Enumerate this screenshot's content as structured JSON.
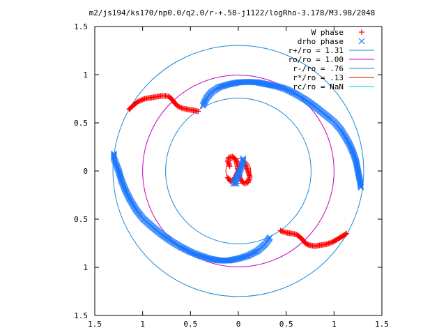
{
  "chart_data": {
    "type": "scatter",
    "title": "m2/js194/ks170/np0.0/q2.0/r-+.58-j1122/logRho-3.178/M3.98/2048",
    "xlabel": "",
    "ylabel": "",
    "xlim": [
      -1.5,
      1.5
    ],
    "ylim": [
      -1.5,
      1.5
    ],
    "x_tick_labels": [
      "1.5",
      "1",
      "0.5",
      "0",
      "0.5",
      "1",
      "1.5"
    ],
    "y_tick_labels": [
      "1.5",
      "1",
      "0.5",
      "0",
      "0.5",
      "1",
      "1.5"
    ],
    "grid": false,
    "legend_position": "top-right",
    "series": [
      {
        "name": "W phase",
        "kind": "points",
        "marker": "plus",
        "color": "#ff0000",
        "points": [
          [
            -1.14,
            0.64
          ],
          [
            -1.1,
            0.68
          ],
          [
            -1.05,
            0.72
          ],
          [
            -0.98,
            0.75
          ],
          [
            -0.92,
            0.76
          ],
          [
            -0.86,
            0.77
          ],
          [
            -0.8,
            0.78
          ],
          [
            -0.76,
            0.78
          ],
          [
            -0.72,
            0.77
          ],
          [
            -0.69,
            0.74
          ],
          [
            -0.66,
            0.7
          ],
          [
            -0.63,
            0.67
          ],
          [
            -0.58,
            0.65
          ],
          [
            -0.53,
            0.64
          ],
          [
            -0.47,
            0.63
          ],
          [
            -0.42,
            0.62
          ],
          [
            -0.09,
            0.05
          ],
          [
            -0.11,
            0.1
          ],
          [
            -0.1,
            0.14
          ],
          [
            -0.06,
            0.15
          ],
          [
            -0.02,
            0.11
          ],
          [
            -0.01,
            0.05
          ],
          [
            0.0,
            0.0
          ],
          [
            0.01,
            -0.05
          ],
          [
            0.03,
            -0.1
          ],
          [
            0.06,
            -0.13
          ],
          [
            0.1,
            -0.12
          ],
          [
            0.12,
            -0.06
          ],
          [
            0.1,
            0.0
          ],
          [
            0.08,
            0.05
          ],
          [
            0.05,
            0.1
          ],
          [
            -0.04,
            -0.08
          ],
          [
            -0.08,
            -0.11
          ],
          [
            -0.11,
            -0.07
          ],
          [
            0.44,
            -0.62
          ],
          [
            0.5,
            -0.64
          ],
          [
            0.56,
            -0.65
          ],
          [
            0.61,
            -0.66
          ],
          [
            0.66,
            -0.7
          ],
          [
            0.7,
            -0.75
          ],
          [
            0.74,
            -0.77
          ],
          [
            0.8,
            -0.78
          ],
          [
            0.86,
            -0.77
          ],
          [
            0.92,
            -0.76
          ],
          [
            0.98,
            -0.74
          ],
          [
            1.05,
            -0.7
          ],
          [
            1.1,
            -0.67
          ],
          [
            1.13,
            -0.65
          ]
        ]
      },
      {
        "name": "drho phase",
        "kind": "points",
        "marker": "cross",
        "color": "#1e78ff",
        "points": [
          [
            -0.37,
            0.68
          ],
          [
            -0.33,
            0.76
          ],
          [
            -0.28,
            0.82
          ],
          [
            -0.2,
            0.87
          ],
          [
            -0.1,
            0.9
          ],
          [
            0.0,
            0.92
          ],
          [
            0.1,
            0.925
          ],
          [
            0.2,
            0.92
          ],
          [
            0.3,
            0.9
          ],
          [
            0.4,
            0.88
          ],
          [
            0.5,
            0.85
          ],
          [
            0.6,
            0.8
          ],
          [
            0.7,
            0.74
          ],
          [
            0.8,
            0.67
          ],
          [
            0.9,
            0.59
          ],
          [
            1.0,
            0.51
          ],
          [
            1.07,
            0.43
          ],
          [
            1.12,
            0.35
          ],
          [
            1.16,
            0.28
          ],
          [
            1.2,
            0.19
          ],
          [
            1.23,
            0.1
          ],
          [
            1.25,
            0.0
          ],
          [
            1.27,
            -0.1
          ],
          [
            1.28,
            -0.17
          ],
          [
            0.05,
            0.13
          ],
          [
            0.05,
            0.09
          ],
          [
            0.03,
            0.04
          ],
          [
            0.01,
            -0.02
          ],
          [
            -0.01,
            -0.06
          ],
          [
            -0.03,
            -0.1
          ],
          [
            -0.05,
            -0.13
          ],
          [
            -0.02,
            -0.13
          ],
          [
            0.33,
            -0.69
          ],
          [
            0.28,
            -0.76
          ],
          [
            0.2,
            -0.83
          ],
          [
            0.1,
            -0.88
          ],
          [
            0.0,
            -0.91
          ],
          [
            -0.1,
            -0.93
          ],
          [
            -0.2,
            -0.93
          ],
          [
            -0.3,
            -0.91
          ],
          [
            -0.4,
            -0.88
          ],
          [
            -0.5,
            -0.84
          ],
          [
            -0.6,
            -0.79
          ],
          [
            -0.7,
            -0.73
          ],
          [
            -0.8,
            -0.66
          ],
          [
            -0.9,
            -0.58
          ],
          [
            -1.0,
            -0.49
          ],
          [
            -1.07,
            -0.4
          ],
          [
            -1.13,
            -0.3
          ],
          [
            -1.18,
            -0.2
          ],
          [
            -1.22,
            -0.1
          ],
          [
            -1.25,
            0.0
          ],
          [
            -1.28,
            0.08
          ],
          [
            -1.3,
            0.13
          ],
          [
            -1.3,
            0.18
          ]
        ]
      },
      {
        "name": "r+/ro = 1.31",
        "kind": "circle",
        "radius": 1.31,
        "color": "#1c8ad6"
      },
      {
        "name": "ro/ro = 1.00",
        "kind": "circle",
        "radius": 1.0,
        "color": "#c000c0"
      },
      {
        "name": "r-/ro = .76",
        "kind": "circle",
        "radius": 0.76,
        "color": "#1c8ad6"
      },
      {
        "name": "r*/ro = .13",
        "kind": "circle",
        "radius": 0.13,
        "color": "#e00000"
      },
      {
        "name": "rc/ro = NaN",
        "kind": "circle",
        "radius": null,
        "color": "#00c8c8"
      }
    ]
  }
}
